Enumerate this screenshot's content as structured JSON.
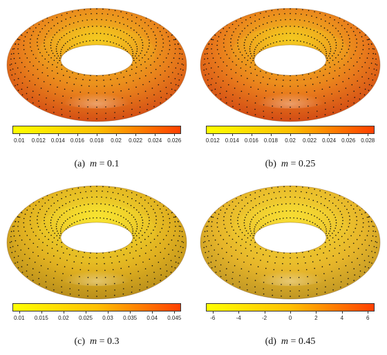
{
  "panels": [
    {
      "label": "(a)",
      "param_name": "m",
      "param_value": "0.1",
      "colorbar_ticks": [
        "0.01",
        "0.012",
        "0.014",
        "0.016",
        "0.018",
        "0.02",
        "0.022",
        "0.024",
        "0.026"
      ],
      "colormap": [
        "#ffff00",
        "#ffc000",
        "#ff4000"
      ],
      "surface_colors": [
        "#f5d020",
        "#e8801c",
        "#cc3a12"
      ]
    },
    {
      "label": "(b)",
      "param_name": "m",
      "param_value": "0.25",
      "colorbar_ticks": [
        "0.012",
        "0.014",
        "0.016",
        "0.018",
        "0.02",
        "0.022",
        "0.024",
        "0.026",
        "0.028"
      ],
      "colormap": [
        "#ffff00",
        "#ffc000",
        "#ff4000"
      ],
      "surface_colors": [
        "#f5d020",
        "#e87a1c",
        "#c93812"
      ]
    },
    {
      "label": "(c)",
      "param_name": "m",
      "param_value": "0.3",
      "colorbar_ticks": [
        "0.01",
        "0.015",
        "0.02",
        "0.025",
        "0.03",
        "0.035",
        "0.04",
        "0.045"
      ],
      "colormap": [
        "#ffff00",
        "#ffc000",
        "#ff4000"
      ],
      "surface_colors": [
        "#fae832",
        "#e0b020",
        "#a8801a"
      ]
    },
    {
      "label": "(d)",
      "param_name": "m",
      "param_value": "0.45",
      "colorbar_ticks": [
        "-6",
        "-4",
        "-2",
        "0",
        "2",
        "4",
        "6"
      ],
      "colormap": [
        "#ffff00",
        "#ffc000",
        "#ff4000"
      ],
      "surface_colors": [
        "#f8e034",
        "#e6b52a",
        "#b08a22"
      ]
    }
  ]
}
